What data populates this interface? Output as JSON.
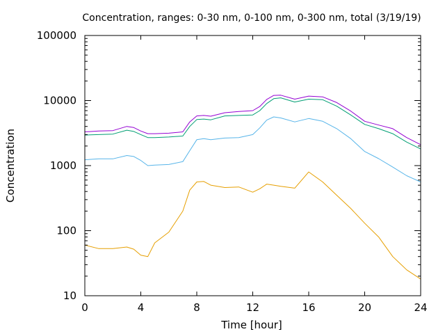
{
  "chart_data": {
    "type": "line",
    "title": "Concentration, ranges: 0-30 nm, 0-100 nm, 0-300 nm, total (3/19/19)",
    "xlabel": "Time [hour]",
    "ylabel": "Concentration",
    "xlim": [
      0,
      24
    ],
    "ylim": [
      10,
      100000
    ],
    "yscale": "log",
    "xticks": [
      "0",
      "4",
      "8",
      "12",
      "16",
      "20",
      "24"
    ],
    "yticks": [
      "10",
      "100",
      "1000",
      "10000",
      "100000"
    ],
    "grid": false,
    "legend": "none",
    "x": [
      0,
      1,
      2,
      3,
      3.5,
      4,
      4.5,
      5,
      6,
      7,
      7.5,
      8,
      8.5,
      9,
      10,
      11,
      12,
      12.5,
      13,
      13.5,
      14,
      15,
      16,
      17,
      18,
      19,
      20,
      21,
      22,
      23,
      24
    ],
    "series": [
      {
        "color": "#e69f00",
        "values": [
          60,
          53,
          53,
          56,
          52,
          42,
          40,
          65,
          95,
          200,
          420,
          560,
          570,
          500,
          460,
          470,
          390,
          440,
          520,
          500,
          480,
          450,
          800,
          560,
          350,
          220,
          130,
          80,
          40,
          25,
          18
        ]
      },
      {
        "color": "#56b4e9",
        "values": [
          1230,
          1270,
          1270,
          1430,
          1380,
          1200,
          1000,
          1020,
          1040,
          1150,
          1700,
          2500,
          2600,
          2500,
          2650,
          2700,
          3000,
          3800,
          5000,
          5600,
          5400,
          4700,
          5300,
          4800,
          3700,
          2600,
          1650,
          1280,
          950,
          700,
          560
        ]
      },
      {
        "color": "#009e73",
        "values": [
          2950,
          3000,
          3050,
          3500,
          3350,
          3000,
          2700,
          2700,
          2750,
          2850,
          4000,
          5100,
          5200,
          5050,
          5800,
          5900,
          6000,
          7000,
          9000,
          10700,
          11000,
          9500,
          10500,
          10300,
          8200,
          6000,
          4300,
          3700,
          3100,
          2300,
          1800
        ]
      },
      {
        "color": "#9400d3",
        "values": [
          3300,
          3400,
          3450,
          4000,
          3850,
          3400,
          3100,
          3100,
          3150,
          3300,
          4700,
          5800,
          5900,
          5750,
          6500,
          6800,
          7000,
          8100,
          10400,
          12000,
          12100,
          10500,
          11700,
          11400,
          9300,
          6900,
          4800,
          4200,
          3700,
          2700,
          2100
        ]
      }
    ]
  }
}
